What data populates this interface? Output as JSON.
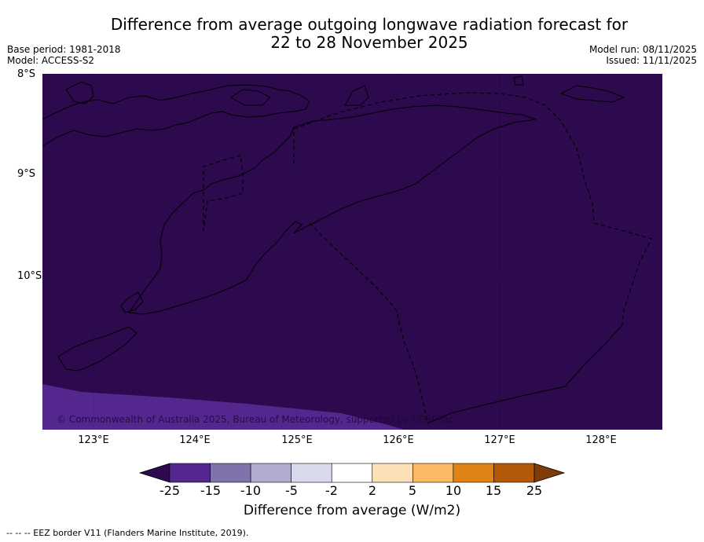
{
  "title_line1": "Difference from average outgoing longwave radiation forecast for",
  "title_line2": "22 to 28 November 2025",
  "base_period": "Base period: 1981-2018",
  "model": "Model: ACCESS-S2",
  "model_run": "Model run: 08/11/2025",
  "issued": "Issued: 11/11/2025",
  "lat_labels": [
    "8°S",
    "9°S",
    "10°S"
  ],
  "lon_labels": [
    "123°E",
    "124°E",
    "125°E",
    "126°E",
    "127°E",
    "128°E"
  ],
  "copyright": "© Commonwealth of Australia 2025, Bureau of Meteorology, supported by COSPPac",
  "colorbar": {
    "ticks": [
      "-25",
      "-15",
      "-10",
      "-5",
      "-2",
      "2",
      "5",
      "10",
      "15",
      "25"
    ],
    "colors": [
      "#2d0a4e",
      "#54278f",
      "#8073ac",
      "#b2abd2",
      "#d8daeb",
      "#ffffff",
      "#fee0b6",
      "#fdb863",
      "#e08214",
      "#b35806",
      "#7f3b08"
    ],
    "label": "Difference from average (W/m2)"
  },
  "map_colors": {
    "background": "#2d0a4e",
    "corner": "#54278f"
  },
  "footnote": "--  --  -- EEZ border V11 (Flanders Marine Institute, 2019)."
}
